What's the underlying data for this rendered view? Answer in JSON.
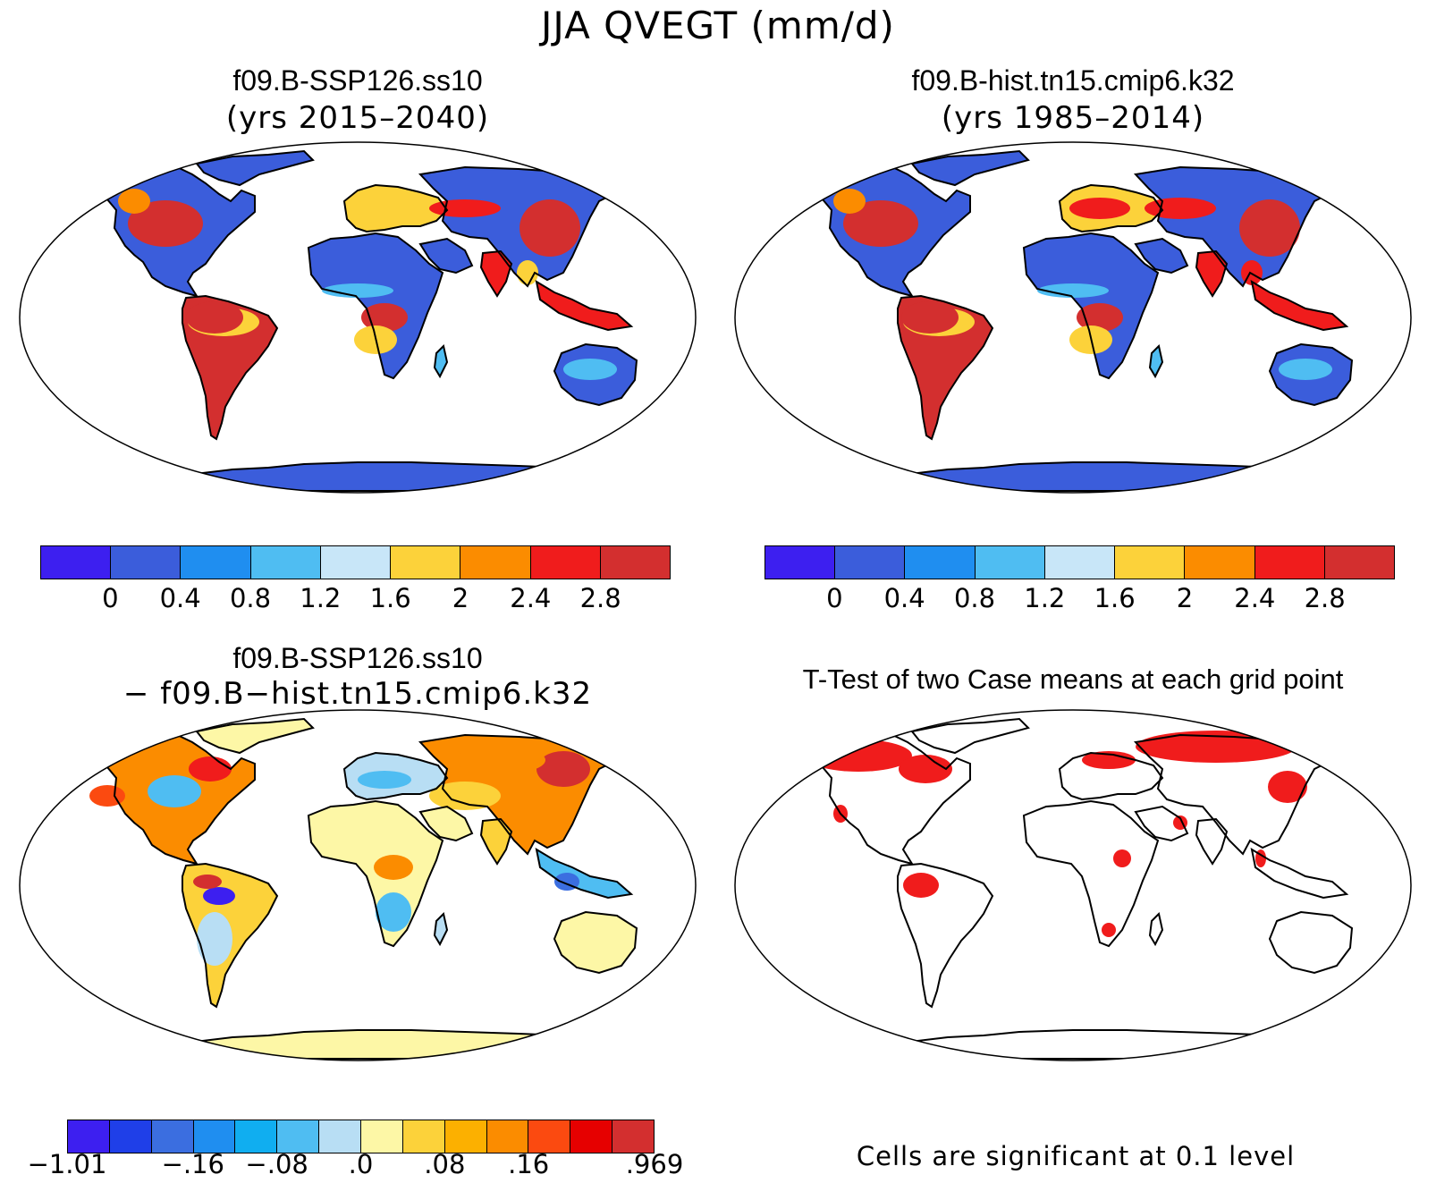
{
  "title": "JJA QVEGT (mm/d)",
  "panels": [
    {
      "title": "f09.B-SSP126.ss10",
      "subtitle": "(yrs 2015–2040)"
    },
    {
      "title": "f09.B-hist.tn15.cmip6.k32",
      "subtitle": "(yrs 1985–2014)"
    },
    {
      "title": "f09.B-SSP126.ss10",
      "subtitle": "− f09.B−hist.tn15.cmip6.k32"
    },
    {
      "title": "T-Test of two Case means at each grid point",
      "subtitle": ""
    }
  ],
  "colorbar_abs": {
    "colors": [
      "#3d1ff0",
      "#3b5ddb",
      "#1f8ef0",
      "#4fbdf2",
      "#c8e6f8",
      "#fcd23a",
      "#fb8c00",
      "#f01c1c",
      "#d32f2f"
    ],
    "labels": [
      "0",
      "0.4",
      "0.8",
      "1.2",
      "1.6",
      "2",
      "2.4",
      "2.8"
    ]
  },
  "colorbar_diff": {
    "colors": [
      "#3d1ff0",
      "#1f3fe8",
      "#3b6ee0",
      "#1f8ef0",
      "#10aef0",
      "#4fbdf2",
      "#b8def4",
      "#fdf7a6",
      "#fcd23a",
      "#fcb000",
      "#fb8c00",
      "#fb4a10",
      "#e60000",
      "#d32f2f"
    ],
    "labels": [
      "−1.01",
      "−.16",
      "−.08",
      ".0",
      ".08",
      ".16",
      ".969"
    ]
  },
  "ttest_note": "Cells are significant at 0.1 level",
  "colors": {
    "land_abs_low": "#3b5ddb",
    "land_diff_base": "#fdf7a6",
    "significant": "#f01c1c"
  }
}
